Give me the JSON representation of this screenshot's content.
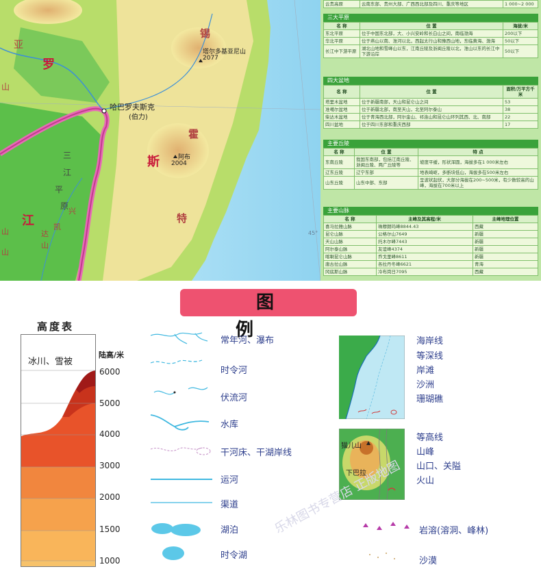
{
  "map": {
    "labels": [
      "锡",
      "霍",
      "特",
      "罗",
      "斯",
      "亚",
      "山",
      "三",
      "江",
      "平",
      "原",
      "兴",
      "凯",
      "达",
      "山",
      "江",
      "山",
      "山"
    ],
    "places": [
      "哈巴罗夫斯克",
      "(伯力)",
      "塔尔多基亚尼山",
      "2077",
      "阿布",
      "2004",
      "45°"
    ]
  },
  "tables": {
    "top_row": [
      "云贵高原",
      "云南东部、贵州大部、广西西北部及四川、重庆等地区",
      "1 000~2 000"
    ],
    "plains": {
      "title": "三大平原",
      "headers": [
        "名 称",
        "位 置",
        "海拔/米"
      ],
      "rows": [
        [
          "东北平原",
          "位于中国东北部，大、小兴安岭和长白山之间，南临渤海",
          "200以下"
        ],
        [
          "华北平原",
          "位于燕山以南、淮河以北，西起太行山和豫西山地，东临黄海、渤海",
          "50以下"
        ],
        [
          "长江中下游平原",
          "湖北山地和雪峰山以东，江南丘陵及浙闽丘陵以北，淮山以东的长江中下游沿岸",
          "50以下"
        ]
      ]
    },
    "basins": {
      "title": "四大盆地",
      "headers": [
        "名 称",
        "位 置",
        "面积/万平方千米"
      ],
      "rows": [
        [
          "塔里木盆地",
          "位于新疆南部，天山和昆仑山之间",
          "53"
        ],
        [
          "准噶尔盆地",
          "位于新疆北部，南至天山，北至阿尔泰山",
          "38"
        ],
        [
          "柴达木盆地",
          "位于青海西北部，阿尔金山、祁连山和昆仑山环列其西、北、南部",
          "22"
        ],
        [
          "四川盆地",
          "位于四川东部和重庆西部",
          "17"
        ]
      ]
    },
    "hills": {
      "title": "主要丘陵",
      "headers": [
        "名 称",
        "位 置",
        "特 点"
      ],
      "rows": [
        [
          "东南丘陵",
          "我国东南部，包括江南丘陵、浙闽丘陵、两广丘陵等",
          "坡度平缓，形状浑圆，海拔多在1 000米左右"
        ],
        [
          "辽东丘陵",
          "辽宁东部",
          "地表崎岖，多断块低山，海拔多在500米左右"
        ],
        [
          "山东丘陵",
          "山东中部、东部",
          "呈波状起伏，大部分海拔在200~500米，有少数较高的山峰，海拔在700米以上"
        ]
      ]
    },
    "mountains": {
      "title": "主要山脉",
      "headers": [
        "名 称",
        "主峰及其高程/米",
        "主峰地理位置"
      ],
      "rows": [
        [
          "喜马拉雅山脉",
          "珠穆朗玛峰8844.43",
          "西藏"
        ],
        [
          "昆仑山脉",
          "公格尔山7649",
          "新疆"
        ],
        [
          "天山山脉",
          "托木尔峰7443",
          "新疆"
        ],
        [
          "阿尔泰山脉",
          "友谊峰4374",
          "新疆"
        ],
        [
          "喀喇昆仑山脉",
          "乔戈里峰8611",
          "新疆"
        ],
        [
          "唐古拉山脉",
          "各拉丹冬峰6621",
          "青海"
        ],
        [
          "冈底斯山脉",
          "冷布岗日7095",
          "西藏"
        ]
      ]
    }
  },
  "legend": {
    "title": "图 例",
    "height_table": {
      "title": "高度表",
      "glacier_label": "冰川、雪被",
      "unit_label": "陆高/米",
      "levels": [
        "6000",
        "5000",
        "4000",
        "3000",
        "2000",
        "1500",
        "1000"
      ]
    },
    "items_left": [
      "常年河、瀑布",
      "时令河",
      "伏流河",
      "水库",
      "干河床、干湖岸线",
      "运河",
      "渠道",
      "湖泊",
      "时令湖"
    ],
    "items_right_top": [
      "海岸线",
      "等深线",
      "岸滩",
      "沙洲",
      "珊瑚礁"
    ],
    "items_right_mid": [
      "等高线",
      "山峰",
      "山口、关隘",
      "火山"
    ],
    "inset_labels": [
      "猫儿山",
      "下巴拉"
    ],
    "items_right_bottom": [
      "岩溶(溶洞、峰林)",
      "沙漠"
    ],
    "colors": {
      "title_bg": "#ee5270",
      "legend_text": "#2d3e8c",
      "table_bg": "#bfe6a6",
      "section_bar": "#3aa23a"
    }
  },
  "watermark": "乐林图书专营店 正版地图"
}
